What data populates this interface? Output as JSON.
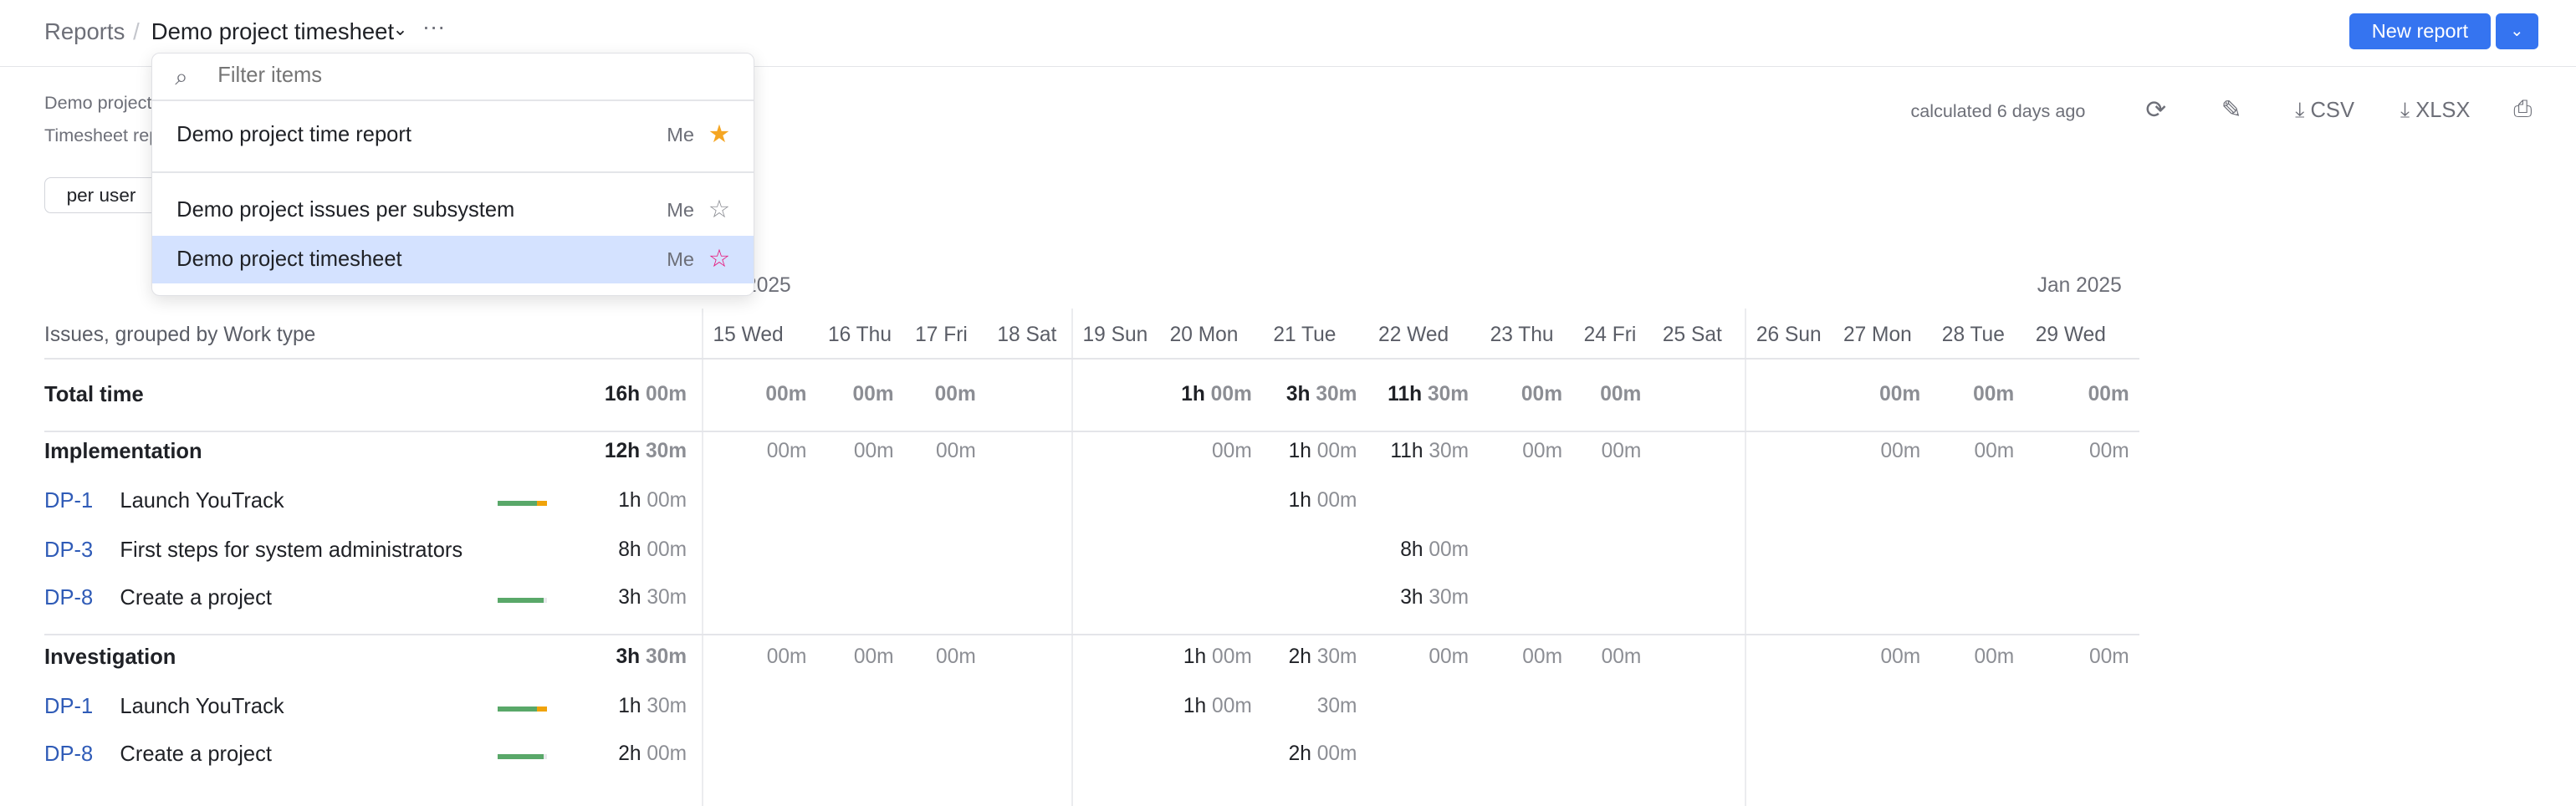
{
  "header": {
    "breadcrumb_root": "Reports",
    "title": "Demo project timesheet",
    "new_report": "New report"
  },
  "meta": {
    "line1": "Demo project",
    "line2": "Timesheet report",
    "group_button": "per user",
    "calculated": "calculated 6 days ago",
    "csv": "CSV",
    "xlsx": "XLSX"
  },
  "dropdown": {
    "placeholder": "Filter items",
    "items": [
      {
        "label": "Demo project time report",
        "owner": "Me",
        "starred": true,
        "star_color": "#f5a623"
      },
      {
        "label": "Demo project issues per subsystem",
        "owner": "Me",
        "starred": false
      },
      {
        "label": "Demo project timesheet",
        "owner": "Me",
        "starred": false,
        "selected": true,
        "hover_star_color": "#e6157a"
      }
    ]
  },
  "table": {
    "months": [
      "Jan 2025",
      "Jan 2025"
    ],
    "group_header": "Issues, grouped by Work type",
    "days": [
      "15 Wed",
      "16 Thu",
      "17 Fri",
      "18 Sat",
      "19 Sun",
      "20 Mon",
      "21 Tue",
      "22 Wed",
      "23 Thu",
      "24 Fri",
      "25 Sat",
      "26 Sun",
      "27 Mon",
      "28 Tue",
      "29 Wed"
    ],
    "rows": [
      {
        "type": "total",
        "name": "Total time",
        "total": "16h 00m",
        "values": [
          "00m",
          "00m",
          "00m",
          null,
          null,
          "1h 00m",
          "3h 30m",
          "11h 30m",
          "00m",
          "00m",
          null,
          null,
          "00m",
          "00m",
          "00m"
        ]
      },
      {
        "type": "group",
        "name": "Implementation",
        "total": "12h 30m",
        "values": [
          "00m",
          "00m",
          "00m",
          null,
          null,
          "00m",
          "1h 00m",
          "11h 30m",
          "00m",
          "00m",
          null,
          null,
          "00m",
          "00m",
          "00m"
        ]
      },
      {
        "type": "issue",
        "id": "DP-1",
        "name": "Launch YouTrack",
        "bar": {
          "done": 0.8,
          "over": 0.2
        },
        "total": "1h 00m",
        "values": [
          null,
          null,
          null,
          null,
          null,
          null,
          "1h 00m",
          null,
          null,
          null,
          null,
          null,
          null,
          null,
          null
        ]
      },
      {
        "type": "issue",
        "id": "DP-3",
        "name": "First steps for system administrators",
        "total": "8h 00m",
        "values": [
          null,
          null,
          null,
          null,
          null,
          null,
          null,
          "8h 00m",
          null,
          null,
          null,
          null,
          null,
          null,
          null
        ]
      },
      {
        "type": "issue",
        "id": "DP-8",
        "name": "Create a project",
        "bar": {
          "done": 0.93,
          "over": 0
        },
        "total": "3h 30m",
        "values": [
          null,
          null,
          null,
          null,
          null,
          null,
          null,
          "3h 30m",
          null,
          null,
          null,
          null,
          null,
          null,
          null
        ]
      },
      {
        "type": "group",
        "name": "Investigation",
        "total": "3h 30m",
        "values": [
          "00m",
          "00m",
          "00m",
          null,
          null,
          "1h 00m",
          "2h 30m",
          "00m",
          "00m",
          "00m",
          null,
          null,
          "00m",
          "00m",
          "00m"
        ]
      },
      {
        "type": "issue",
        "id": "DP-1",
        "name": "Launch YouTrack",
        "bar": {
          "done": 0.8,
          "over": 0.2
        },
        "total": "1h 30m",
        "values": [
          null,
          null,
          null,
          null,
          null,
          "1h 00m",
          "30m",
          null,
          null,
          null,
          null,
          null,
          null,
          null,
          null
        ]
      },
      {
        "type": "issue",
        "id": "DP-8",
        "name": "Create a project",
        "bar": {
          "done": 0.93,
          "over": 0
        },
        "total": "2h 00m",
        "values": [
          null,
          null,
          null,
          null,
          null,
          null,
          "2h 00m",
          null,
          null,
          null,
          null,
          null,
          null,
          null,
          null
        ]
      }
    ]
  },
  "colors": {
    "accent": "#3574f0",
    "bar_done": "#59a869",
    "bar_over": "#f0a30a",
    "selected_bg": "#d4e2ff",
    "issue_key": "#2f5bb7"
  }
}
